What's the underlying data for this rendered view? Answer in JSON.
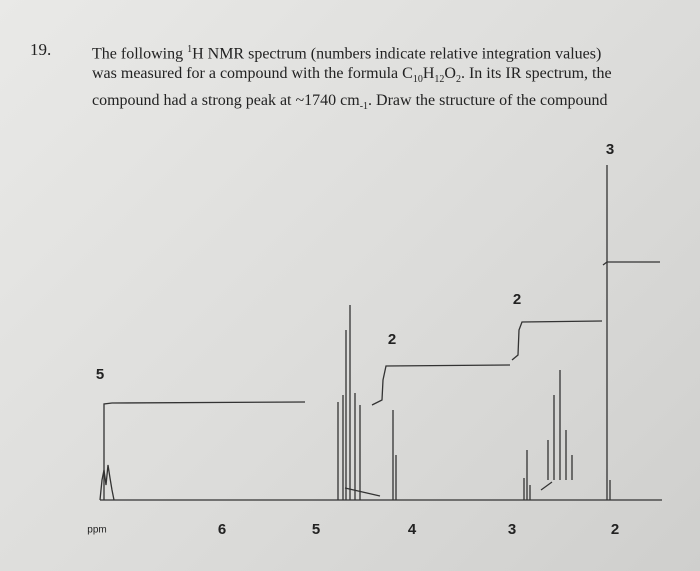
{
  "question": {
    "number": "19.",
    "lines": [
      [
        {
          "text": "The following "
        },
        {
          "text": "1",
          "style": "sup"
        },
        {
          "text": "H NMR spectrum (numbers indicate relative integration values)"
        }
      ],
      [
        {
          "text": "was measured for a compound with the formula C"
        },
        {
          "text": "10",
          "style": "sub"
        },
        {
          "text": "H"
        },
        {
          "text": "12",
          "style": "sub"
        },
        {
          "text": "O"
        },
        {
          "text": "2",
          "style": "sub"
        },
        {
          "text": ". In its IR spectrum, the"
        }
      ],
      [
        {
          "text": "compound had a strong peak at ~1740 cm"
        },
        {
          "text": "-1",
          "style": "sub"
        },
        {
          "text": ". Draw the structure of the compound"
        }
      ]
    ]
  },
  "spectrum": {
    "axis_unit": "ppm",
    "axis_labels": [
      "6",
      "5",
      "4",
      "3",
      "2"
    ],
    "integrations": [
      "5",
      "2",
      "2",
      "3"
    ]
  }
}
